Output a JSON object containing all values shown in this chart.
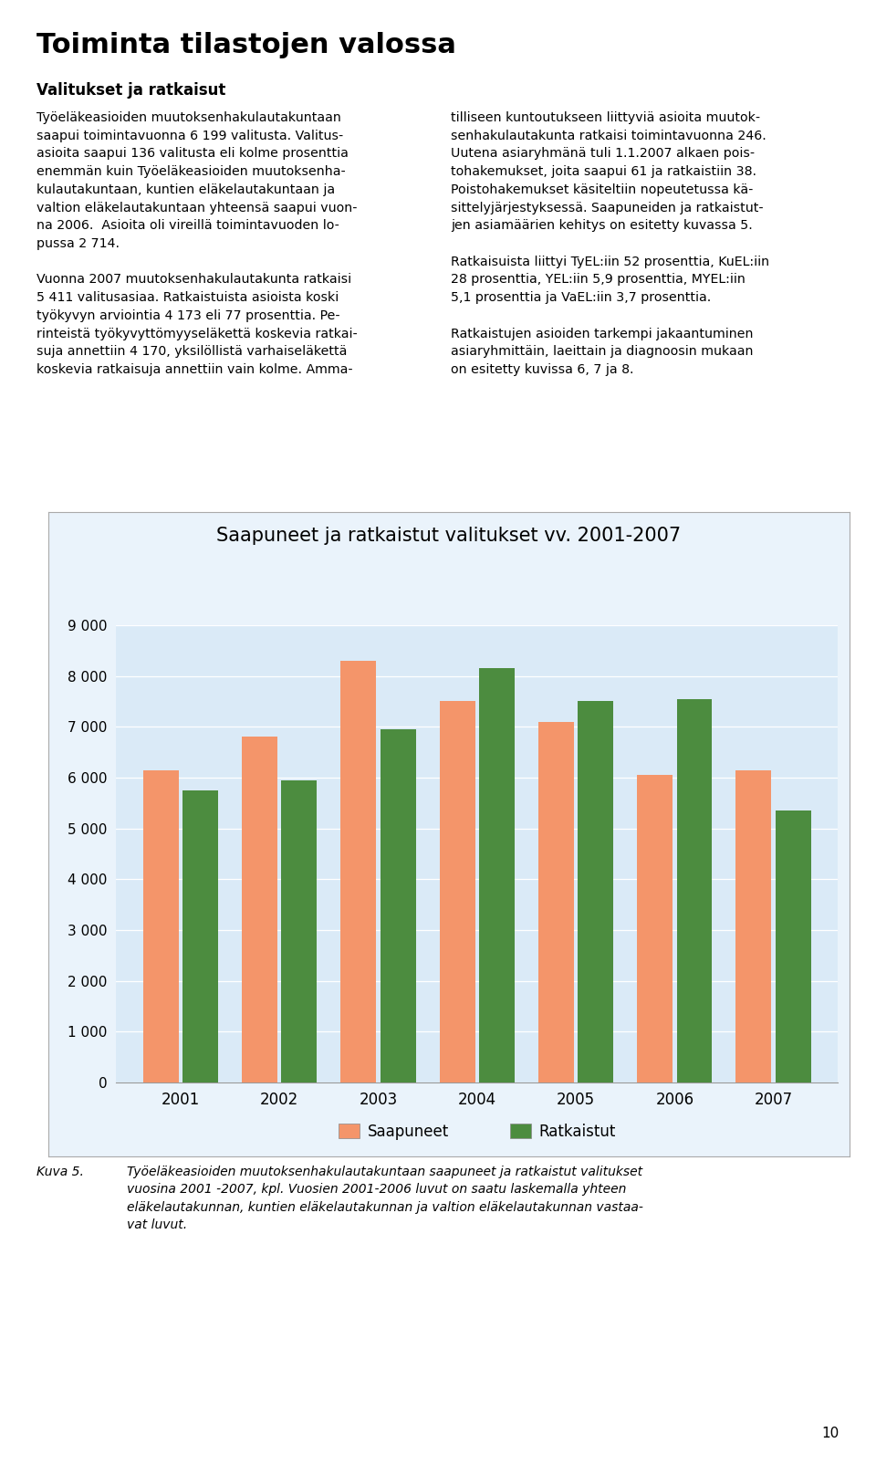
{
  "title": "Saapuneet ja ratkaistut valitukset vv. 2001-2007",
  "years": [
    "2001",
    "2002",
    "2003",
    "2004",
    "2005",
    "2006",
    "2007"
  ],
  "saapuneet": [
    6150,
    6800,
    8300,
    7500,
    7100,
    6050,
    6150
  ],
  "ratkaistut": [
    5750,
    5950,
    6950,
    8150,
    7500,
    7550,
    5350
  ],
  "bar_color_saapuneet": "#F4956A",
  "bar_color_ratkaistut": "#4C8C3F",
  "ylim": [
    0,
    9000
  ],
  "yticks": [
    0,
    1000,
    2000,
    3000,
    4000,
    5000,
    6000,
    7000,
    8000,
    9000
  ],
  "legend_saapuneet": "Saapuneet",
  "legend_ratkaistut": "Ratkaistut",
  "chart_bg": "#DAEAF7",
  "outer_bg": "#EAF3FB",
  "page_title": "Toiminta tilastojen valossa",
  "subtitle": "Valitukset ja ratkaisut",
  "caption_label": "Kuva 5.",
  "caption_text": "Työeläkeasioiden muutoksenhakulautakuntaan saapuneet ja ratkaistut valitukset\nvuosina 2001 -2007, kpl. Vuosien 2001-2006 luvut on saatu laskemalla yhteen\neläkelautakunnan, kuntien eläkelautakunnan ja valtion eläkelautakunnan vastaa-\nvat luvut.",
  "page_number": "10"
}
